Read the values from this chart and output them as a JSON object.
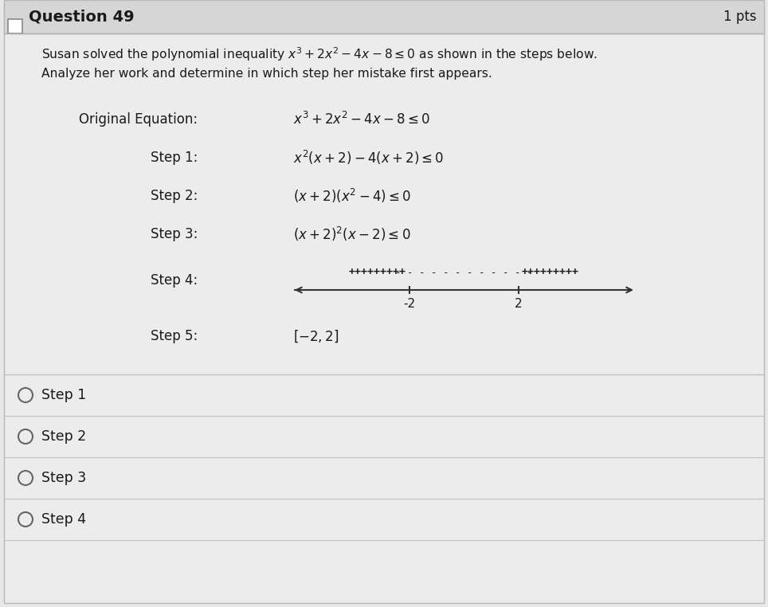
{
  "title": "Question 49",
  "pts": "1 pts",
  "bg_color": "#e8e8e8",
  "header_bg": "#d4d4d4",
  "content_bg": "#efefef",
  "separator_color": "#c0c0c0",
  "intro_line1": "Susan solved the polynomial inequality $x^3 + 2x^2 - 4x - 8 \\leq 0$ as shown in the steps below.",
  "intro_line2": "Analyze her work and determine in which step her mistake first appears.",
  "original_label": "Original Equation:",
  "original_eq": "$x^3 + 2x^2 - 4x - 8 \\leq 0$",
  "step1_label": "Step 1:",
  "step1_eq": "$x^2 (x + 2) - 4 (x + 2) \\leq 0$",
  "step2_label": "Step 2:",
  "step2_eq": "$(x + 2)(x^2 - 4) \\leq 0$",
  "step3_label": "Step 3:",
  "step3_eq": "$(x + 2)^2(x - 2) \\leq 0$",
  "step4_label": "Step 4:",
  "step5_label": "Step 5:",
  "step5_eq": "$[-2, 2]$",
  "choices": [
    "Step 1",
    "Step 2",
    "Step 3",
    "Step 4"
  ],
  "plus_left": "+++++++++",
  "dashes": "- - - - - - - - - - - -",
  "plus_right": "+++++++++",
  "tick_m2": "-2",
  "tick_2": "2"
}
